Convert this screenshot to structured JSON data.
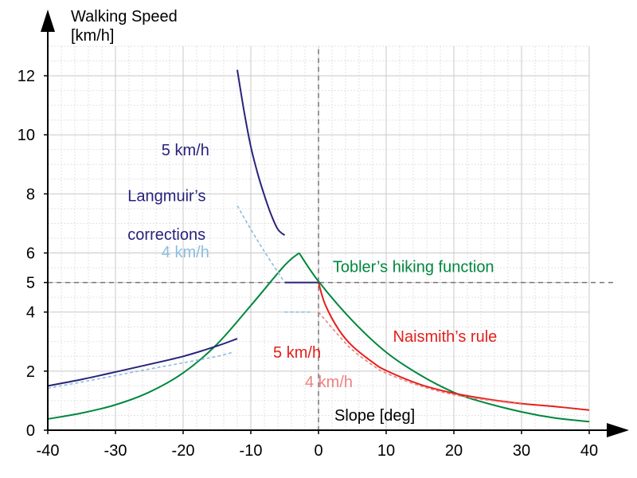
{
  "chart_data": {
    "type": "line",
    "ylabel_line1": "Walking Speed",
    "ylabel_line2": "[km/h]",
    "xlabel": "Slope [deg]",
    "xlim": [
      -40,
      40
    ],
    "ylim": [
      0,
      13
    ],
    "x_ticks": [
      -40,
      -30,
      -20,
      -10,
      0,
      10,
      20,
      30,
      40
    ],
    "y_ticks": [
      0,
      2,
      4,
      5,
      6,
      8,
      10,
      12
    ],
    "grid": true,
    "reference_lines": [
      {
        "axis": "x",
        "value": 0,
        "style": "dashed"
      },
      {
        "axis": "y",
        "value": 5,
        "style": "dashed"
      }
    ],
    "series": [
      {
        "name": "Tobler's hiking function",
        "color": "#00873e",
        "x": [
          -40,
          -35,
          -30,
          -25,
          -20,
          -15,
          -10,
          -5,
          -2.86,
          0,
          5,
          10,
          15,
          20,
          24,
          30,
          35,
          40
        ],
        "y": [
          0.38,
          0.58,
          0.86,
          1.29,
          1.94,
          2.91,
          4.22,
          5.58,
          6.0,
          5.04,
          3.71,
          2.64,
          1.87,
          1.28,
          0.97,
          0.62,
          0.41,
          0.29
        ]
      },
      {
        "name": "Naismith's rule 5 km/h",
        "color": "#e3201b",
        "x": [
          0,
          1,
          3,
          5,
          8,
          10,
          15,
          20,
          25,
          30,
          35,
          40
        ],
        "y": [
          5.0,
          4.25,
          3.4,
          2.85,
          2.3,
          2.02,
          1.55,
          1.25,
          1.05,
          0.9,
          0.8,
          0.68
        ]
      },
      {
        "name": "Naismith's rule 4 km/h",
        "color": "#f08080",
        "x": [
          0,
          3,
          5,
          8,
          10,
          15,
          20,
          25,
          30
        ],
        "y": [
          4.0,
          3.2,
          2.72,
          2.2,
          1.93,
          1.5,
          1.2,
          1.02,
          0.88
        ]
      },
      {
        "name": "Langmuir's corrections 5 km/h",
        "color": "#28237b",
        "x": [
          -40,
          -35,
          -30,
          -25,
          -20,
          -15,
          -12
        ],
        "y": [
          1.5,
          1.72,
          1.97,
          2.23,
          2.5,
          2.85,
          3.1
        ]
      },
      {
        "name": "Langmuir's corrections 5 km/h",
        "color": "#28237b",
        "x": [
          -12,
          -11,
          -10,
          -9,
          -8,
          -7,
          -6,
          -5
        ],
        "y": [
          12.2,
          10.8,
          9.6,
          8.7,
          7.95,
          7.3,
          6.8,
          6.6
        ]
      },
      {
        "name": "Langmuir's corrections 5 km/h",
        "color": "#28237b",
        "x": [
          -5,
          0
        ],
        "y": [
          5.0,
          5.0
        ]
      },
      {
        "name": "Langmuir's corrections 4 km/h",
        "color": "#8dbde0",
        "x": [
          -40,
          -35,
          -30,
          -25,
          -20,
          -15,
          -12.5
        ],
        "y": [
          1.42,
          1.63,
          1.85,
          2.07,
          2.28,
          2.5,
          2.65
        ]
      },
      {
        "name": "Langmuir's corrections 4 km/h",
        "color": "#8dbde0",
        "x": [
          -12,
          -10,
          -8,
          -6,
          -5
        ],
        "y": [
          7.6,
          6.8,
          6.05,
          5.35,
          5.0
        ]
      },
      {
        "name": "Langmuir's corrections 4 km/h",
        "color": "#8dbde0",
        "x": [
          -5,
          -1
        ],
        "y": [
          4.0,
          4.0
        ]
      }
    ],
    "annotations": [
      {
        "text": "5 km/h",
        "color": "#28237b",
        "x": -23.2,
        "y": 9.3,
        "anchor": "start"
      },
      {
        "text": "Langmuir’s",
        "color": "#28237b",
        "x": -28.2,
        "y": 7.75,
        "anchor": "start"
      },
      {
        "text": "corrections",
        "color": "#28237b",
        "x": -28.2,
        "y": 6.45,
        "anchor": "start"
      },
      {
        "text": "4 km/h",
        "color": "#8dbde0",
        "x": -23.2,
        "y": 5.85,
        "anchor": "start"
      },
      {
        "text": "Tobler’s hiking function",
        "color": "#00873e",
        "x": 2.1,
        "y": 5.35,
        "anchor": "start"
      },
      {
        "text": "Naismith’s rule",
        "color": "#e3201b",
        "x": 11,
        "y": 3.0,
        "anchor": "start"
      },
      {
        "text": "5 km/h",
        "color": "#e3201b",
        "x": -6.7,
        "y": 2.45,
        "anchor": "start"
      },
      {
        "text": "4 km/h",
        "color": "#f08080",
        "x": -2.0,
        "y": 1.45,
        "anchor": "start"
      }
    ]
  }
}
